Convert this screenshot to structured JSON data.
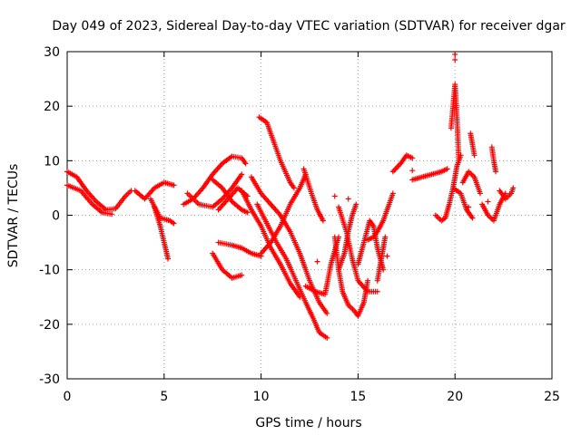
{
  "chart_data": {
    "type": "scatter",
    "title": "Day 049 of 2023, Sidereal Day-to-day VTEC variation (SDTVAR) for receiver dgar",
    "xlabel": "GPS time / hours",
    "ylabel": "SDTVAR / TECUs",
    "xlim": [
      0,
      25
    ],
    "ylim": [
      -30,
      30
    ],
    "xticks": [
      0,
      5,
      10,
      15,
      20,
      25
    ],
    "yticks": [
      -30,
      -20,
      -10,
      0,
      10,
      20,
      30
    ],
    "grid": true,
    "marker": "+",
    "color": "#ff0000",
    "tracks": [
      [
        [
          0.0,
          8.0
        ],
        [
          0.5,
          7.0
        ],
        [
          1.0,
          4.5
        ],
        [
          1.5,
          2.5
        ],
        [
          2.0,
          1.0
        ],
        [
          2.5,
          1.2
        ],
        [
          3.0,
          3.5
        ],
        [
          3.3,
          4.5
        ]
      ],
      [
        [
          0.0,
          5.5
        ],
        [
          0.7,
          4.5
        ],
        [
          1.3,
          2.0
        ],
        [
          1.8,
          0.5
        ],
        [
          2.3,
          0.2
        ]
      ],
      [
        [
          3.5,
          4.5
        ],
        [
          4.0,
          3.0
        ],
        [
          4.5,
          5.0
        ],
        [
          5.0,
          6.0
        ],
        [
          5.5,
          5.5
        ]
      ],
      [
        [
          4.5,
          1.5
        ],
        [
          4.8,
          -2.0
        ],
        [
          5.0,
          -5.0
        ],
        [
          5.2,
          -8.0
        ]
      ],
      [
        [
          4.3,
          3.0
        ],
        [
          4.8,
          -0.5
        ],
        [
          5.3,
          -1.0
        ],
        [
          5.5,
          -1.5
        ]
      ],
      [
        [
          6.0,
          2.0
        ],
        [
          6.5,
          3.0
        ],
        [
          7.0,
          5.0
        ],
        [
          7.5,
          7.5
        ],
        [
          8.0,
          9.5
        ],
        [
          8.5,
          10.8
        ],
        [
          9.0,
          10.5
        ],
        [
          9.2,
          9.5
        ]
      ],
      [
        [
          6.2,
          4.0
        ],
        [
          6.8,
          2.0
        ],
        [
          7.5,
          1.5
        ],
        [
          8.0,
          3.0
        ],
        [
          8.5,
          5.0
        ],
        [
          9.0,
          7.5
        ]
      ],
      [
        [
          7.5,
          6.5
        ],
        [
          8.0,
          5.0
        ],
        [
          8.5,
          2.5
        ],
        [
          9.0,
          1.0
        ],
        [
          9.3,
          0.5
        ]
      ],
      [
        [
          7.8,
          1.0
        ],
        [
          8.3,
          3.0
        ],
        [
          8.8,
          5.0
        ],
        [
          9.3,
          3.5
        ]
      ],
      [
        [
          7.5,
          -7.0
        ],
        [
          8.0,
          -10.0
        ],
        [
          8.5,
          -11.5
        ],
        [
          9.0,
          -11.0
        ]
      ],
      [
        [
          7.8,
          -5.0
        ],
        [
          8.5,
          -5.5
        ],
        [
          9.0,
          -6.0
        ],
        [
          9.5,
          -7.0
        ],
        [
          10.0,
          -7.5
        ]
      ],
      [
        [
          9.5,
          7.0
        ],
        [
          10.0,
          4.0
        ],
        [
          10.5,
          2.0
        ],
        [
          11.0,
          0.0
        ],
        [
          11.5,
          -3.0
        ],
        [
          12.0,
          -7.0
        ],
        [
          12.5,
          -12.0
        ],
        [
          13.0,
          -16.0
        ],
        [
          13.4,
          -18.0
        ]
      ],
      [
        [
          9.8,
          2.0
        ],
        [
          10.3,
          -1.5
        ],
        [
          10.8,
          -5.0
        ],
        [
          11.3,
          -8.0
        ],
        [
          11.8,
          -12.0
        ],
        [
          12.3,
          -16.0
        ],
        [
          12.7,
          -19.0
        ],
        [
          13.0,
          -21.5
        ],
        [
          13.4,
          -22.5
        ]
      ],
      [
        [
          9.0,
          4.5
        ],
        [
          9.5,
          1.0
        ],
        [
          10.0,
          -2.0
        ],
        [
          10.5,
          -6.0
        ],
        [
          11.0,
          -9.0
        ],
        [
          11.5,
          -12.5
        ],
        [
          12.0,
          -15.0
        ]
      ],
      [
        [
          10.0,
          -7.0
        ],
        [
          10.5,
          -5.0
        ],
        [
          11.0,
          -2.0
        ],
        [
          11.5,
          2.0
        ],
        [
          12.0,
          5.0
        ],
        [
          12.3,
          7.5
        ]
      ],
      [
        [
          9.9,
          18.0
        ],
        [
          10.3,
          17.0
        ],
        [
          10.7,
          13.0
        ],
        [
          11.0,
          10.0
        ],
        [
          11.5,
          6.0
        ],
        [
          11.7,
          5.0
        ]
      ],
      [
        [
          12.2,
          8.5
        ],
        [
          12.6,
          4.0
        ],
        [
          12.9,
          1.0
        ],
        [
          13.2,
          -1.0
        ]
      ],
      [
        [
          12.3,
          -13.0
        ],
        [
          12.8,
          -14.0
        ],
        [
          13.3,
          -14.5
        ],
        [
          13.6,
          -9.0
        ],
        [
          14.0,
          -4.0
        ]
      ],
      [
        [
          14.0,
          -10.0
        ],
        [
          14.3,
          -7.0
        ],
        [
          14.5,
          -3.0
        ],
        [
          14.7,
          0.0
        ],
        [
          14.9,
          2.0
        ]
      ],
      [
        [
          13.8,
          -4.0
        ],
        [
          14.0,
          -10.0
        ],
        [
          14.2,
          -14.0
        ],
        [
          14.5,
          -16.5
        ],
        [
          14.8,
          -17.5
        ],
        [
          15.0,
          -18.5
        ],
        [
          15.3,
          -16.0
        ],
        [
          15.5,
          -12.0
        ]
      ],
      [
        [
          14.0,
          1.5
        ],
        [
          14.4,
          -3.0
        ],
        [
          14.7,
          -8.0
        ],
        [
          15.0,
          -12.0
        ],
        [
          15.5,
          -14.0
        ],
        [
          16.0,
          -14.0
        ]
      ],
      [
        [
          15.0,
          -9.0
        ],
        [
          15.3,
          -5.0
        ],
        [
          15.6,
          -1.0
        ],
        [
          15.8,
          -2.0
        ],
        [
          16.0,
          -6.0
        ],
        [
          16.3,
          -10.0
        ]
      ],
      [
        [
          15.5,
          -4.5
        ],
        [
          15.8,
          -4.0
        ],
        [
          16.0,
          -3.0
        ],
        [
          16.3,
          -1.0
        ],
        [
          16.6,
          2.0
        ],
        [
          16.8,
          4.0
        ]
      ],
      [
        [
          16.0,
          -12.0
        ],
        [
          16.1,
          -10.0
        ],
        [
          16.2,
          -8.0
        ],
        [
          16.3,
          -6.0
        ],
        [
          16.4,
          -4.0
        ]
      ],
      [
        [
          16.8,
          8.0
        ],
        [
          17.2,
          9.5
        ],
        [
          17.5,
          11.0
        ],
        [
          17.8,
          10.5
        ]
      ],
      [
        [
          17.8,
          6.5
        ],
        [
          18.3,
          7.0
        ],
        [
          18.8,
          7.5
        ],
        [
          19.3,
          8.0
        ],
        [
          19.6,
          8.5
        ]
      ],
      [
        [
          19.0,
          0.0
        ],
        [
          19.3,
          -1.0
        ],
        [
          19.5,
          -0.5
        ],
        [
          19.7,
          2.0
        ],
        [
          19.9,
          5.0
        ],
        [
          20.1,
          9.0
        ],
        [
          20.3,
          11.0
        ]
      ],
      [
        [
          19.8,
          16.0
        ],
        [
          19.9,
          20.0
        ],
        [
          20.0,
          24.0
        ],
        [
          20.1,
          18.0
        ],
        [
          20.2,
          10.0
        ]
      ],
      [
        [
          19.9,
          5.0
        ],
        [
          20.3,
          4.0
        ],
        [
          20.6,
          1.0
        ],
        [
          20.9,
          -0.5
        ]
      ],
      [
        [
          20.4,
          6.0
        ],
        [
          20.7,
          8.0
        ],
        [
          21.0,
          7.0
        ],
        [
          21.3,
          4.0
        ]
      ],
      [
        [
          20.8,
          15.0
        ],
        [
          20.9,
          13.0
        ],
        [
          21.0,
          11.0
        ]
      ],
      [
        [
          21.4,
          2.0
        ],
        [
          21.7,
          0.0
        ],
        [
          22.0,
          -1.0
        ],
        [
          22.3,
          2.0
        ],
        [
          22.6,
          4.0
        ]
      ],
      [
        [
          21.9,
          12.5
        ],
        [
          22.0,
          10.0
        ],
        [
          22.1,
          8.0
        ]
      ],
      [
        [
          22.3,
          4.5
        ],
        [
          22.6,
          3.0
        ],
        [
          22.9,
          4.0
        ],
        [
          23.0,
          5.0
        ]
      ]
    ],
    "points": [
      [
        20.0,
        29.5
      ],
      [
        20.0,
        28.5
      ],
      [
        13.8,
        3.5
      ],
      [
        17.8,
        8.2
      ],
      [
        12.9,
        -8.5
      ],
      [
        14.5,
        3.0
      ],
      [
        16.5,
        -7.5
      ],
      [
        20.7,
        1.5
      ],
      [
        21.7,
        2.5
      ]
    ]
  }
}
